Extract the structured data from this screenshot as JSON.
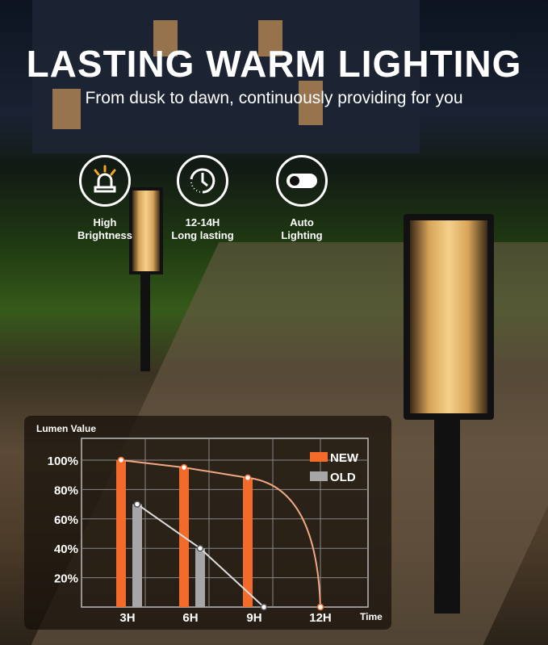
{
  "headline": "LASTING WARM LIGHTING",
  "subtitle": "From dusk to dawn, continuously providing for you",
  "features": [
    {
      "icon": "siren-light-icon",
      "line1": "High",
      "line2": "Brightness"
    },
    {
      "icon": "clock-history-icon",
      "line1": "12-14H",
      "line2": "Long lasting"
    },
    {
      "icon": "toggle-switch-icon",
      "line1": "Auto",
      "line2": "Lighting"
    }
  ],
  "colors": {
    "new": "#f26b2a",
    "old": "#a6a6a6",
    "curve": "#f2a882"
  },
  "chart_data": {
    "type": "bar",
    "ylabel": "Lumen Value",
    "xlabel": "Time",
    "categories": [
      "3H",
      "6H",
      "9H",
      "12H"
    ],
    "yticks": [
      "20%",
      "40%",
      "60%",
      "80%",
      "100%"
    ],
    "ylim": [
      0,
      100
    ],
    "grid": true,
    "legend": "top-right",
    "series": [
      {
        "name": "NEW",
        "values": [
          100,
          95,
          88,
          0
        ]
      },
      {
        "name": "OLD",
        "values": [
          70,
          40,
          0,
          null
        ]
      }
    ]
  }
}
